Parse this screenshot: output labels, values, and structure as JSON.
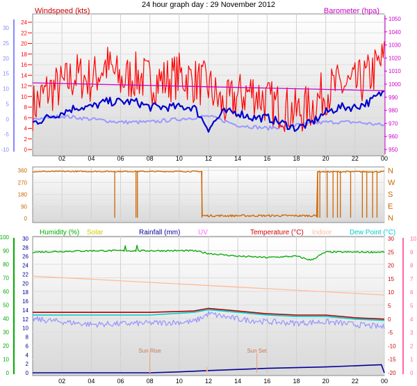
{
  "title": "24 hour graph day : 29 November 2012",
  "x_ticks": [
    "02",
    "04",
    "06",
    "08",
    "10",
    "12",
    "14",
    "16",
    "18",
    "20",
    "22",
    "00"
  ],
  "colors": {
    "windspeed": "#ff0000",
    "windspeed_label": "#cc0000",
    "wind_avg": "#0000cc",
    "barometer": "#cc00cc",
    "direction": "#cc6600",
    "humidity": "#00aa00",
    "solar": "#cccc00",
    "rainfall": "#000099",
    "uv": "#ff66ff",
    "temperature": "#cc0000",
    "indoor": "#ffbb99",
    "dewpoint": "#00cccc",
    "dewpoint_trace": "#9999ff",
    "temp_trace": "#aa0000",
    "axis_left_blue": "#8888ff",
    "axis_right_pink": "#ff66aa",
    "panel_top": "#ffffff",
    "panel_bottom": "#d8d8d8"
  },
  "chart_data": [
    {
      "type": "line",
      "panel": "wind",
      "left_axis": {
        "title": "Windspeed (kts)",
        "ticks": [
          0,
          2,
          4,
          6,
          8,
          10,
          12,
          14,
          16,
          18,
          20,
          22,
          24
        ]
      },
      "left_outer_axis": {
        "ticks": [
          -10,
          -5,
          0,
          5,
          10,
          15,
          20,
          25,
          30
        ]
      },
      "right_axis": {
        "title": "Barometer (hpa)",
        "ticks": [
          950,
          960,
          970,
          980,
          990,
          1000,
          1010,
          1020,
          1030,
          1040,
          1050
        ]
      },
      "series": [
        {
          "key": "gust",
          "x": [
            0,
            1,
            2,
            3,
            4,
            5,
            6,
            7,
            8,
            9,
            10,
            11,
            12,
            13,
            14,
            15,
            16,
            17,
            18,
            19,
            20,
            21,
            22,
            23,
            24
          ],
          "y": [
            8,
            11,
            12,
            14,
            13,
            16,
            13,
            14,
            13,
            13,
            14,
            13,
            12,
            8,
            10,
            11,
            9,
            8,
            7,
            8,
            11,
            12,
            12,
            14,
            17
          ]
        },
        {
          "key": "avg",
          "x": [
            0,
            1,
            2,
            3,
            4,
            5,
            6,
            7,
            8,
            9,
            10,
            11,
            12,
            13,
            14,
            15,
            16,
            17,
            18,
            19,
            20,
            21,
            22,
            23,
            24
          ],
          "y": [
            5,
            6,
            7,
            8,
            8,
            9,
            9,
            9,
            8,
            8,
            8,
            8,
            4,
            7,
            7,
            6,
            6,
            5,
            4,
            5,
            7,
            8,
            8,
            9,
            11
          ]
        },
        {
          "key": "barometer",
          "x": [
            0,
            2,
            4,
            6,
            8,
            10,
            12,
            14,
            16,
            18,
            20,
            22,
            24
          ],
          "y": [
            1001,
            1000.5,
            1000,
            999.5,
            999,
            998.5,
            998,
            997.5,
            997,
            996.5,
            996,
            995.5,
            995
          ]
        },
        {
          "key": "wind_trace",
          "x": [
            0,
            2,
            4,
            6,
            8,
            10,
            12,
            14,
            16,
            18,
            20,
            22,
            24
          ],
          "y": [
            0,
            1,
            0,
            -1,
            -1,
            0,
            1,
            -2,
            -3,
            -2,
            -1,
            -1,
            -2
          ]
        }
      ]
    },
    {
      "type": "line",
      "panel": "direction",
      "left_axis": {
        "ticks": [
          0,
          90,
          180,
          270,
          360
        ]
      },
      "right_axis": {
        "ticks": [
          "N",
          "W",
          "S",
          "E",
          "N"
        ]
      },
      "series": [
        {
          "key": "direction",
          "x": [
            0,
            5.5,
            5.6,
            5.7,
            11.5,
            11.6,
            19.5,
            24
          ],
          "y": [
            350,
            350,
            0,
            350,
            350,
            15,
            15,
            350
          ]
        }
      ]
    },
    {
      "type": "line",
      "panel": "temperature",
      "legend": [
        "Humidity (%)",
        "Solar",
        "Rainfall (mm)",
        "UV",
        "Temperature (°C)",
        "Indoor",
        "Dew Point (°C)"
      ],
      "humidity_axis": {
        "ticks": [
          0,
          10,
          20,
          30,
          40,
          50,
          60,
          70,
          80,
          90,
          100
        ]
      },
      "rain_axis": {
        "ticks": [
          0,
          2,
          4,
          6,
          8,
          10,
          12,
          14,
          16,
          18,
          20,
          22,
          24,
          26,
          28,
          30
        ]
      },
      "temp_axis": {
        "ticks": [
          -20,
          -15,
          -10,
          -5,
          0,
          5,
          10,
          15,
          20,
          25,
          30
        ]
      },
      "uv_axis": {
        "ticks": [
          0,
          1,
          2,
          3,
          4,
          5,
          6,
          7,
          8,
          9,
          10
        ]
      },
      "annotations": [
        "Sun Rise",
        "Sun Set"
      ],
      "series": [
        {
          "key": "humidity",
          "x": [
            0,
            4,
            8,
            11,
            12,
            14,
            16,
            18,
            19,
            20,
            22,
            24
          ],
          "y": [
            89,
            90,
            90,
            90,
            88,
            86,
            85,
            86,
            83,
            89,
            89,
            89
          ]
        },
        {
          "key": "indoor",
          "x": [
            0,
            24
          ],
          "y": [
            16,
            9
          ]
        },
        {
          "key": "temperature",
          "x": [
            0,
            4,
            8,
            11,
            12,
            14,
            16,
            18,
            20,
            22,
            24
          ],
          "y": [
            2.5,
            2.5,
            2.5,
            3,
            4,
            3,
            2,
            1.5,
            1.5,
            0.5,
            0
          ]
        },
        {
          "key": "dewpoint",
          "x": [
            0,
            4,
            8,
            11,
            12,
            14,
            16,
            18,
            20,
            22,
            24
          ],
          "y": [
            1.5,
            1.5,
            1.5,
            2.5,
            3.5,
            2.5,
            1.5,
            1,
            1,
            0,
            -0.5
          ]
        },
        {
          "key": "dewpoint_trace",
          "x": [
            0,
            4,
            8,
            11,
            12,
            14,
            16,
            18,
            20,
            22,
            24
          ],
          "y": [
            0,
            -2,
            -1.5,
            -1,
            2,
            0,
            -1,
            -1.5,
            -1,
            -2,
            -3
          ]
        },
        {
          "key": "rainfall",
          "x": [
            0,
            4,
            8,
            10,
            12,
            16,
            20,
            23,
            23.8,
            24
          ],
          "y": [
            0,
            0,
            0,
            0.2,
            0.5,
            1,
            1.3,
            1.7,
            1.8,
            0
          ]
        }
      ]
    }
  ]
}
